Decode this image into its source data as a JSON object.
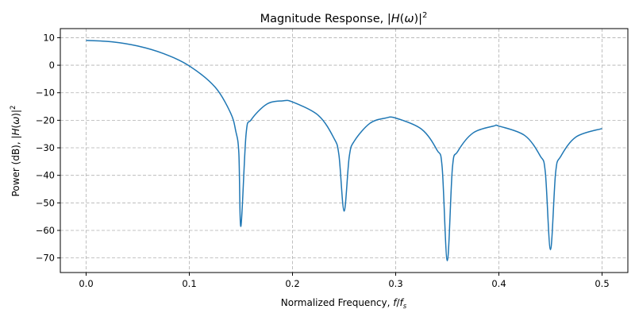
{
  "chart_data": {
    "type": "line",
    "title": "Magnitude Response, |H(ω)|²",
    "title_parts": {
      "prefix": "Magnitude Response, |",
      "var": "H",
      "paren_open": "(",
      "omega": "ω",
      "paren_close": ")|",
      "sup": "2"
    },
    "xlabel": "Normalized Frequency, f/fs",
    "xlabel_parts": {
      "prefix": "Normalized Frequency, ",
      "f": "f",
      "slash": "/",
      "fs": "f",
      "sub": "s"
    },
    "ylabel": "Power (dB), |H(ω)|²",
    "ylabel_parts": {
      "prefix": "Power (dB), |",
      "var": "H",
      "paren_open": "(",
      "omega": "ω",
      "paren_close": ")|",
      "sup": "2"
    },
    "xlim": [
      -0.025,
      0.525
    ],
    "ylim": [
      -75.3,
      13.3
    ],
    "xticks": [
      0.0,
      0.1,
      0.2,
      0.3,
      0.4,
      0.5
    ],
    "xtick_labels": [
      "0.0",
      "0.1",
      "0.2",
      "0.3",
      "0.4",
      "0.5"
    ],
    "yticks": [
      10,
      0,
      -10,
      -20,
      -30,
      -40,
      -50,
      -60,
      -70
    ],
    "ytick_labels": [
      "10",
      "0",
      "−10",
      "−20",
      "−30",
      "−40",
      "−50",
      "−60",
      "−70"
    ],
    "grid": true,
    "line_color": "#1f77b4",
    "grid_color": "#b0b0b0",
    "x": [
      0,
      0.025,
      0.05,
      0.075,
      0.1,
      0.125,
      0.14,
      0.145,
      0.148,
      0.15,
      0.155,
      0.16,
      0.175,
      0.19,
      0.2,
      0.225,
      0.24,
      0.245,
      0.25,
      0.255,
      0.26,
      0.275,
      0.29,
      0.3,
      0.325,
      0.34,
      0.345,
      0.35,
      0.355,
      0.36,
      0.375,
      0.395,
      0.4,
      0.425,
      0.44,
      0.445,
      0.45,
      0.455,
      0.46,
      0.475,
      0.5
    ],
    "y": [
      9.0,
      8.51,
      6.98,
      4.22,
      -0.25,
      -7.96,
      -17.33,
      -23.9,
      -31.9,
      -58.5,
      -25.1,
      -19.8,
      -14.14,
      -12.95,
      -13.35,
      -18.2,
      -26.4,
      -32.6,
      -53.0,
      -33.2,
      -27.5,
      -21.1,
      -19.2,
      -19.2,
      -23.2,
      -30.8,
      -36.9,
      -71.0,
      -37.2,
      -31.4,
      -24.6,
      -22.1,
      -22.1,
      -25.5,
      -32.9,
      -38.8,
      -67.0,
      -39.0,
      -33.1,
      -26.0,
      -23.0
    ]
  }
}
